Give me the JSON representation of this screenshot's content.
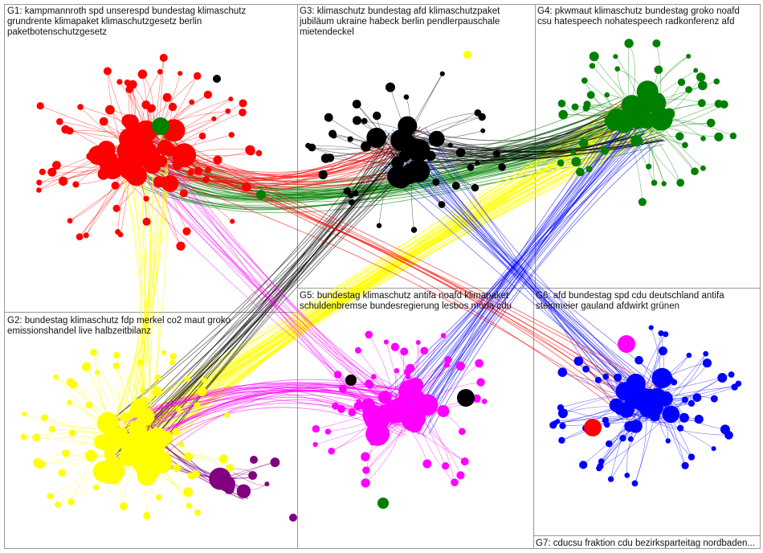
{
  "groups": [
    {
      "id": "G1",
      "label": "G1: kampmannroth spd unserespd bundestag klimaschutz\ngrundrente klimapaket klimaschutzgesetz berlin\npaketbotenschutzgesetz",
      "color": "#ff0000"
    },
    {
      "id": "G2",
      "label": "G2: bundestag klimaschutz fdp merkel co2 maut groko\nemissionshandel live halbzeitbilanz",
      "color": "#ffff00"
    },
    {
      "id": "G3",
      "label": "G3: klimaschutz bundestag afd klimaschutzpaket\njubiläum ukraine habeck berlin pendlerpauschale\nmietendeckel",
      "color": "#000000"
    },
    {
      "id": "G4",
      "label": "G4: pkwmaut klimaschutz bundestag groko noafd\ncsu hatespeech nohatespeech radkonferenz afd",
      "color": "#008000"
    },
    {
      "id": "G5",
      "label": "G5: bundestag klimaschutz antifa noafd klimapaket\nschuldenbremse bundesregierung lesbos moria cdu",
      "color": "#ff00ff"
    },
    {
      "id": "G6",
      "label": "G6: afd bundestag spd cdu deutschland antifa\nsteinmeier gauland afdwirkt grünen",
      "color": "#0000ff"
    },
    {
      "id": "G7",
      "label": "G7: cducsu fraktion cdu bezirksparteitag nordbaden...",
      "color": "#800080"
    }
  ],
  "frame_color": "#999999"
}
